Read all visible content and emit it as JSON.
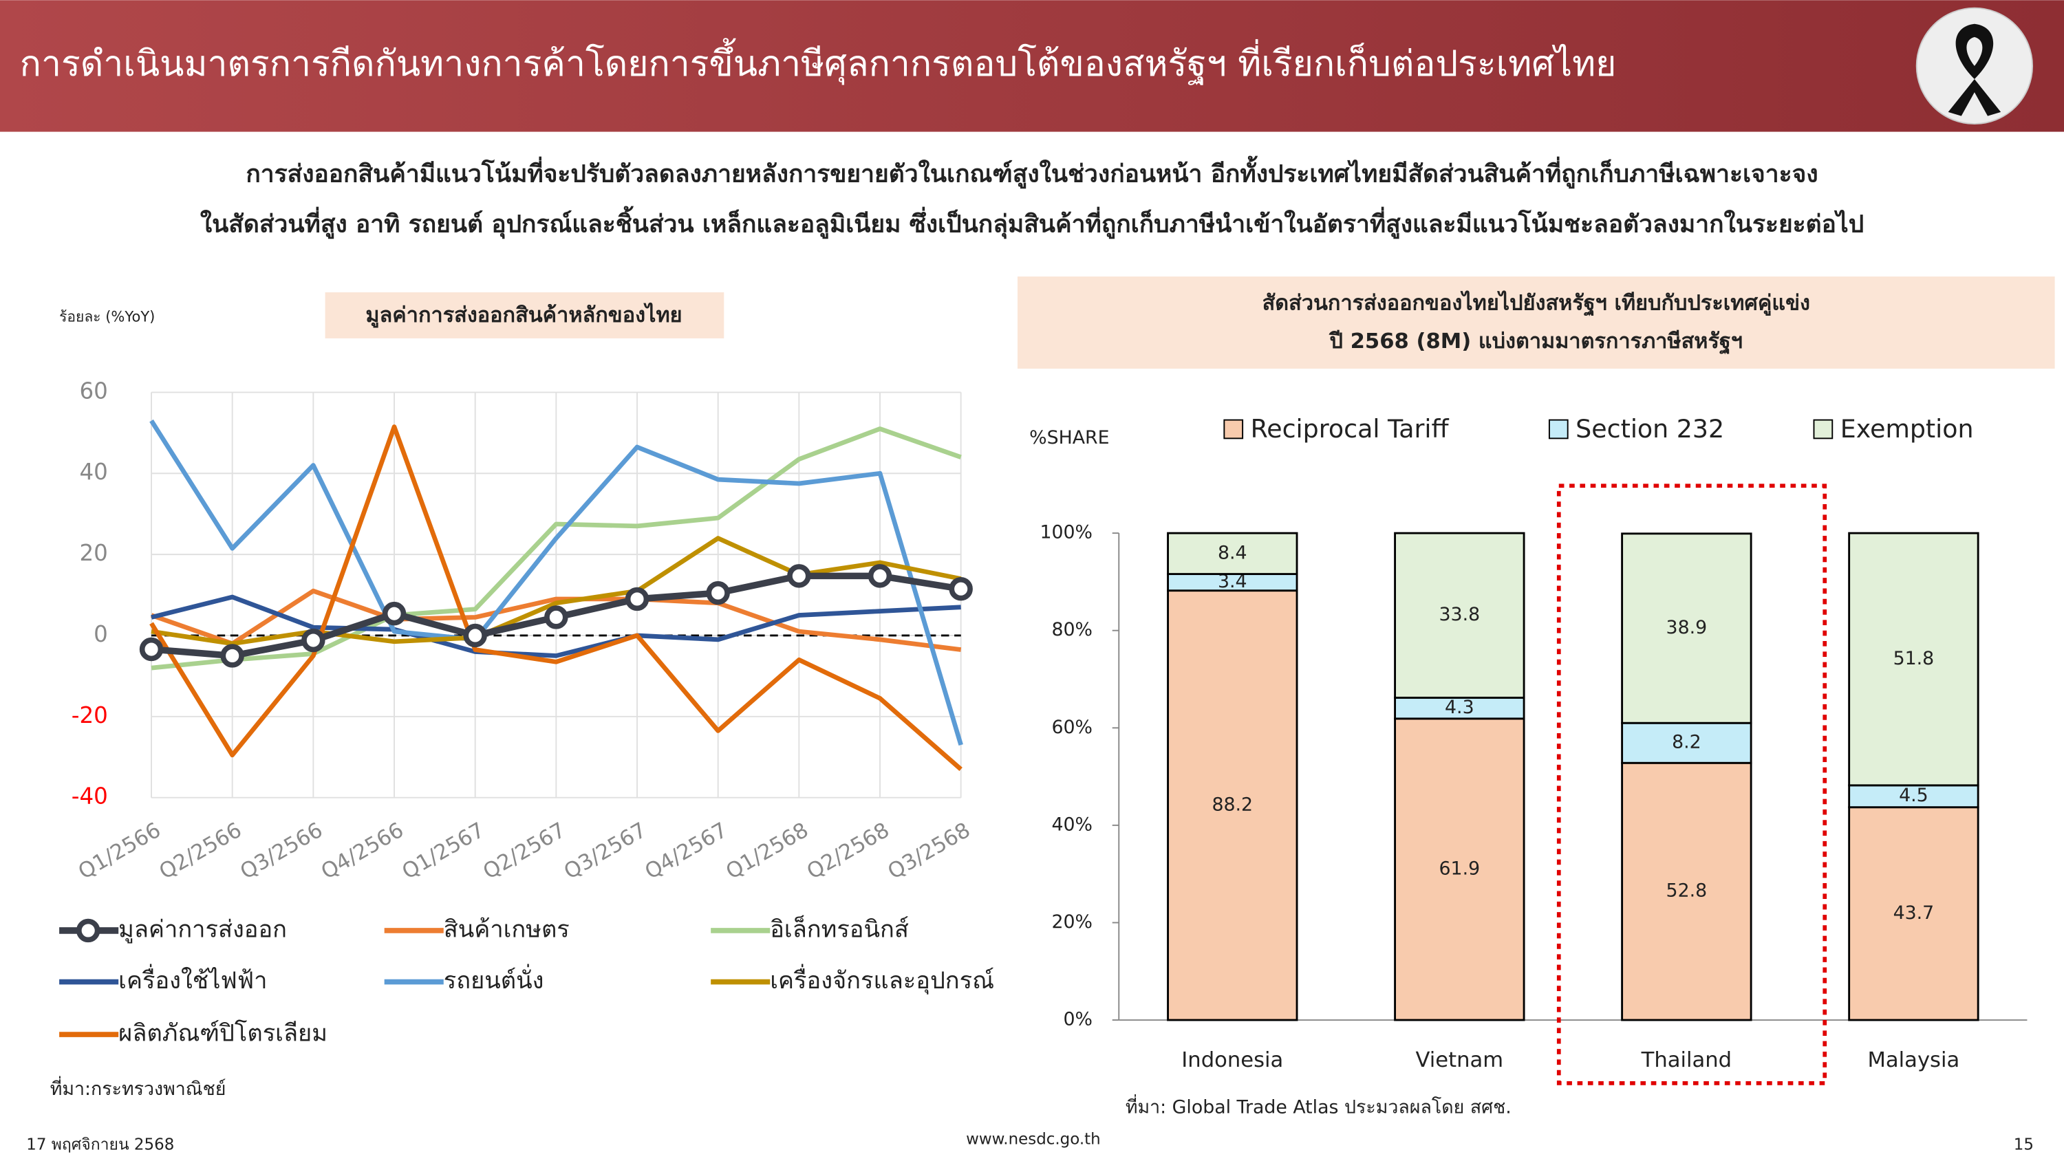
{
  "header": {
    "title": "การดำเนินมาตรการกีดกันทางการค้าโดยการขึ้นภาษีศุลกากรตอบโต้ของสหรัฐฯ ที่เรียกเก็บต่อประเทศไทย"
  },
  "summary": [
    "การส่งออกสินค้ามีแนวโน้มที่จะปรับตัวลดลงภายหลังการขยายตัวในเกณฑ์สูงในช่วงก่อนหน้า อีกทั้งประเทศไทยมีสัดส่วนสินค้าที่ถูกเก็บภาษีเฉพาะเจาะจง",
    "ในสัดส่วนที่สูง อาทิ รถยนต์ อุปกรณ์และชิ้นส่วน เหล็กและอลูมิเนียม ซึ่งเป็นกลุ่มสินค้าที่ถูกเก็บภาษีนำเข้าในอัตราที่สูงและมีแนวโน้มชะลอตัวลงมากในระยะต่อไป"
  ],
  "chart_data": [
    {
      "type": "line",
      "title": "มูลค่าการส่งออกสินค้าหลักของไทย",
      "y_label": "ร้อยละ (%YoY)",
      "categories": [
        "Q1/2566",
        "Q2/2566",
        "Q3/2566",
        "Q4/2566",
        "Q1/2567",
        "Q2/2567",
        "Q3/2567",
        "Q4/2567",
        "Q1/2568",
        "Q2/2568",
        "Q3/2568"
      ],
      "ylim": [
        -40,
        60
      ],
      "yticks": [
        -40,
        -20,
        0,
        20,
        40,
        60
      ],
      "negative_tick_color": "#ff0000",
      "grid": true,
      "series": [
        {
          "name": "มูลค่าการส่งออก",
          "color": "#3b3f4a",
          "markers": true,
          "values": [
            -3.4,
            -5,
            -1.2,
            5.4,
            0,
            4.5,
            9,
            10.5,
            14.7,
            14.7,
            11.5
          ]
        },
        {
          "name": "สินค้าเกษตร",
          "color": "#ed7d31",
          "values": [
            5,
            -2,
            11,
            4,
            4.5,
            9,
            9,
            8,
            1,
            -1,
            -3.5
          ]
        },
        {
          "name": "อิเล็กทรอนิกส์",
          "color": "#a9d18e",
          "values": [
            -8,
            -6,
            -4.5,
            5,
            6.5,
            27.5,
            27,
            29,
            43.5,
            51,
            44
          ]
        },
        {
          "name": "เครื่องใช้ไฟฟ้า",
          "color": "#2f5597",
          "values": [
            4.5,
            9.5,
            2,
            1.5,
            -4,
            -5,
            0,
            -1,
            5,
            6,
            7
          ]
        },
        {
          "name": "รถยนต์นั่ง",
          "color": "#5b9bd5",
          "values": [
            53,
            21.5,
            42,
            1,
            -1,
            24,
            46.5,
            38.5,
            37.5,
            40,
            -27
          ]
        },
        {
          "name": "เครื่องจักรและอุปกรณ์",
          "color": "#bf9000",
          "values": [
            1,
            -2,
            1,
            -1.5,
            -0.5,
            8,
            11,
            24,
            15,
            18,
            14
          ]
        },
        {
          "name": "ผลิตภัณฑ์ปิโตรเลียม",
          "color": "#e26b0a",
          "values": [
            3,
            -29.5,
            -5,
            51.5,
            -3.5,
            -6.5,
            0,
            -23.5,
            -6,
            -15.5,
            -33
          ]
        }
      ],
      "source": "ที่มา:กระทรวงพาณิชย์"
    },
    {
      "type": "stacked_bar",
      "title": "สัดส่วนการส่งออกของไทยไปยังสหรัฐฯ เทียบกับประเทศคู่แข่ง",
      "subtitle": "ปี 2568 (8M) แบ่งตามมาตรการภาษีสหรัฐฯ",
      "y_label": "%SHARE",
      "categories": [
        "Indonesia",
        "Vietnam",
        "Thailand",
        "Malaysia"
      ],
      "ylim": [
        0,
        100
      ],
      "yticks": [
        {
          "value": 0,
          "label": "0%"
        },
        {
          "value": 20,
          "label": "20%"
        },
        {
          "value": 40,
          "label": "40%"
        },
        {
          "value": 60,
          "label": "60%"
        },
        {
          "value": 80,
          "label": "80%"
        },
        {
          "value": 100,
          "label": "100%"
        }
      ],
      "highlight": 2,
      "series": [
        {
          "name": "Reciprocal Tariff",
          "color": "#f8cbad",
          "values": [
            88.2,
            61.9,
            52.8,
            43.7
          ]
        },
        {
          "name": "Section 232",
          "color": "#c5ecf8",
          "values": [
            3.4,
            4.3,
            8.2,
            4.5
          ]
        },
        {
          "name": "Exemption",
          "color": "#e2f0d9",
          "values": [
            8.4,
            33.8,
            38.9,
            51.8
          ]
        }
      ],
      "source": "ที่มา: Global Trade Atlas ประมวลผลโดย สศช."
    }
  ],
  "footer": {
    "date": "17 พฤศจิกายน 2568",
    "url": "www.nesdc.go.th",
    "page": "15"
  }
}
